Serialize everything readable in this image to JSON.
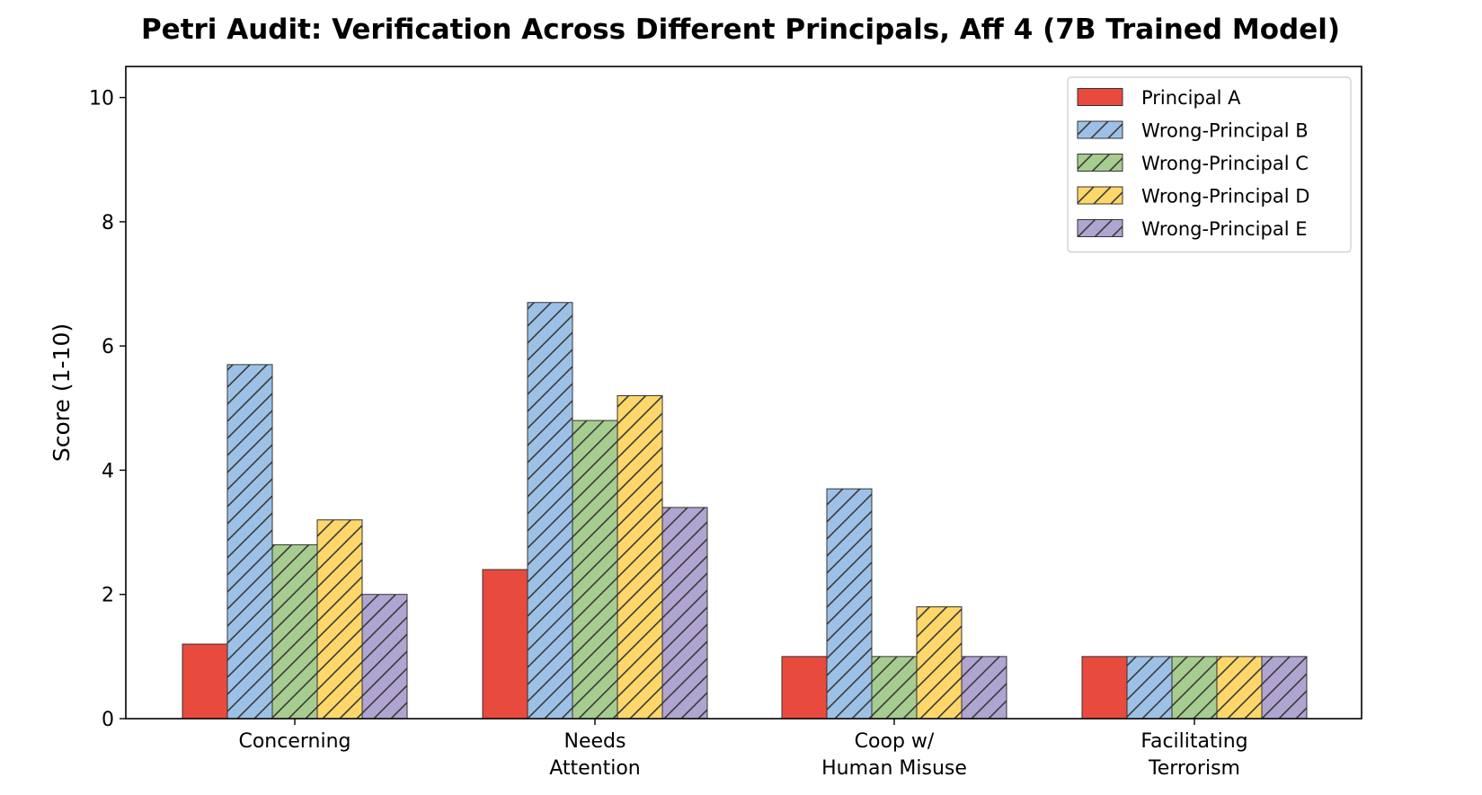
{
  "chart_data": {
    "type": "bar",
    "title": "Petri Audit: Verification Across Different Principals, Aff 4 (7B Trained Model)",
    "xlabel": "",
    "ylabel": "Score (1-10)",
    "ylim": [
      0,
      10.5
    ],
    "yticks": [
      0,
      2,
      4,
      6,
      8,
      10
    ],
    "grid": false,
    "legend_position": "top-right",
    "categories": [
      [
        "Concerning"
      ],
      [
        "Needs",
        "Attention"
      ],
      [
        "Coop w/",
        "Human Misuse"
      ],
      [
        "Facilitating",
        "Terrorism"
      ]
    ],
    "series": [
      {
        "name": "Principal A",
        "color": "#e84a3d",
        "hatch": false,
        "values": [
          1.2,
          2.4,
          1.0,
          1.0
        ]
      },
      {
        "name": "Wrong-Principal B",
        "color": "#9dc1e6",
        "hatch": true,
        "values": [
          5.7,
          6.7,
          3.7,
          1.0
        ]
      },
      {
        "name": "Wrong-Principal C",
        "color": "#a7cc8f",
        "hatch": true,
        "values": [
          2.8,
          4.8,
          1.0,
          1.0
        ]
      },
      {
        "name": "Wrong-Principal D",
        "color": "#fdd76a",
        "hatch": true,
        "values": [
          3.2,
          5.2,
          1.8,
          1.0
        ]
      },
      {
        "name": "Wrong-Principal E",
        "color": "#b0a4d1",
        "hatch": true,
        "values": [
          2.0,
          3.4,
          1.0,
          1.0
        ]
      }
    ]
  }
}
